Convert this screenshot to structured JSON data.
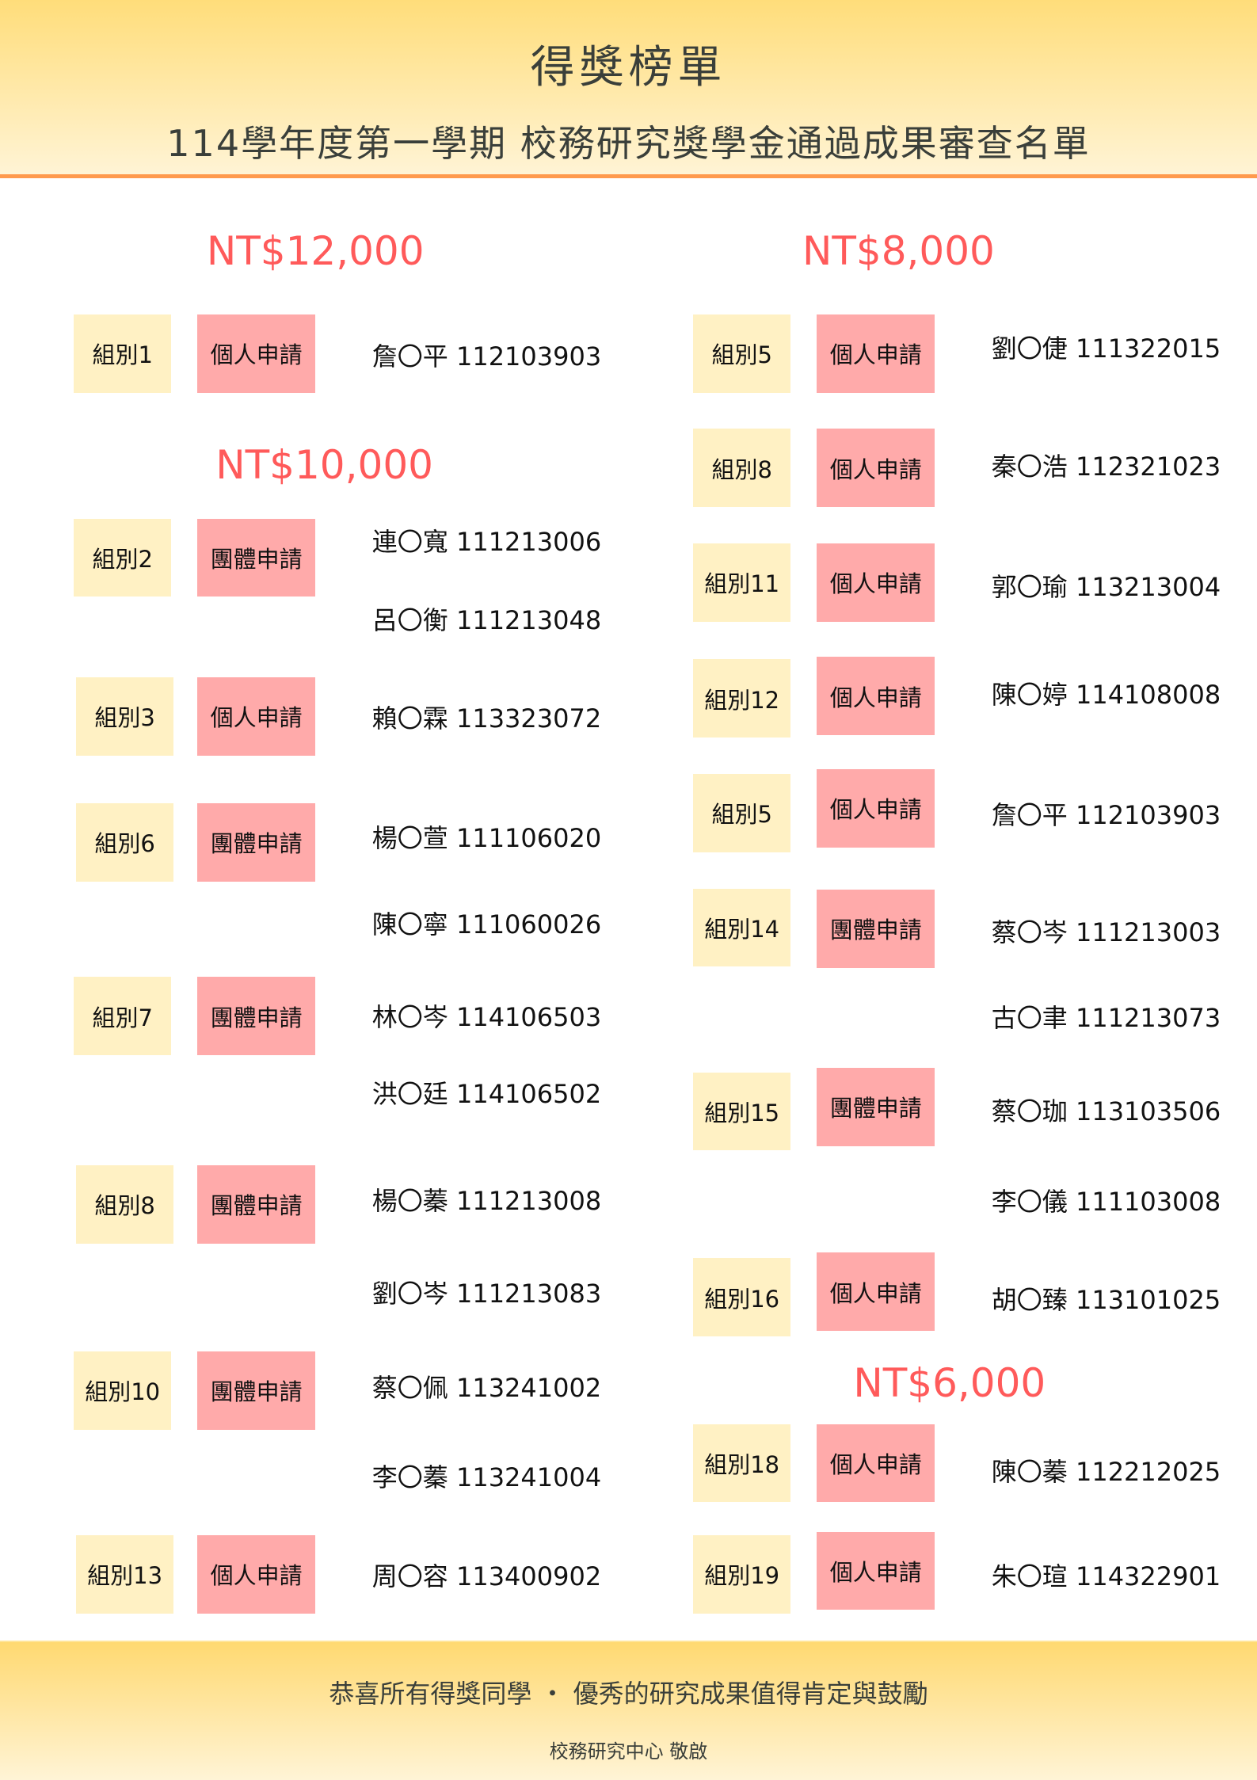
{
  "header": {
    "title": "得獎榜單",
    "subtitle": "114學年度第一學期 校務研究獎學金通過成果審查名單"
  },
  "colors": {
    "amount": "#ff5a5a",
    "group_box": "#fff1c4",
    "type_box": "#ffaaaa",
    "accent_rule": "#ff9a4d",
    "band": "#ffdd7a"
  },
  "columns": [
    {
      "sections": [
        {
          "amount": "NT$12,000",
          "entries": [
            {
              "group": "組別1",
              "type": "個人申請",
              "members": [
                "詹〇平 112103903"
              ]
            }
          ]
        },
        {
          "amount": "NT$10,000",
          "entries": [
            {
              "group": "組別2",
              "type": "團體申請",
              "members": [
                "連〇寬 111213006",
                "呂〇衡 111213048"
              ]
            },
            {
              "group": "組別3",
              "type": "個人申請",
              "members": [
                "賴〇霖 113323072"
              ]
            },
            {
              "group": "組別6",
              "type": "團體申請",
              "members": [
                "楊〇萱 111106020",
                "陳〇寧 111060026"
              ]
            },
            {
              "group": "組別7",
              "type": "團體申請",
              "members": [
                "林〇岑 114106503",
                "洪〇廷 114106502"
              ]
            },
            {
              "group": "組別8",
              "type": "團體申請",
              "members": [
                "楊〇蓁 111213008",
                "劉〇岑 111213083"
              ]
            },
            {
              "group": "組別10",
              "type": "團體申請",
              "members": [
                "蔡〇佩 113241002",
                "李〇蓁 113241004"
              ]
            },
            {
              "group": "組別13",
              "type": "個人申請",
              "members": [
                "周〇容 113400902"
              ]
            }
          ]
        }
      ]
    },
    {
      "sections": [
        {
          "amount": "NT$8,000",
          "entries": [
            {
              "group": "組別5",
              "type": "個人申請",
              "members": [
                "劉〇倢 111322015"
              ]
            },
            {
              "group": "組別8",
              "type": "個人申請",
              "members": [
                "秦〇浩 112321023"
              ]
            },
            {
              "group": "組別11",
              "type": "個人申請",
              "members": [
                "郭〇瑜 113213004"
              ]
            },
            {
              "group": "組別12",
              "type": "個人申請",
              "members": [
                "陳〇婷 114108008"
              ]
            },
            {
              "group": "組別5",
              "type": "個人申請",
              "members": [
                "詹〇平 112103903"
              ]
            },
            {
              "group": "組別14",
              "type": "團體申請",
              "members": [
                "蔡〇岑 111213003",
                "古〇聿 111213073"
              ]
            },
            {
              "group": "組別15",
              "type": "團體申請",
              "members": [
                "蔡〇珈 113103506",
                "李〇儀 111103008"
              ]
            },
            {
              "group": "組別16",
              "type": "個人申請",
              "members": [
                "胡〇臻 113101025"
              ]
            }
          ]
        },
        {
          "amount": "NT$6,000",
          "entries": [
            {
              "group": "組別18",
              "type": "個人申請",
              "members": [
                "陳〇蓁 112212025"
              ]
            },
            {
              "group": "組別19",
              "type": "個人申請",
              "members": [
                "朱〇瑄 114322901"
              ]
            }
          ]
        }
      ]
    }
  ],
  "footer": {
    "message": "恭喜所有得獎同學 ・ 優秀的研究成果值得肯定與鼓勵",
    "signature": "校務研究中心 敬啟"
  }
}
